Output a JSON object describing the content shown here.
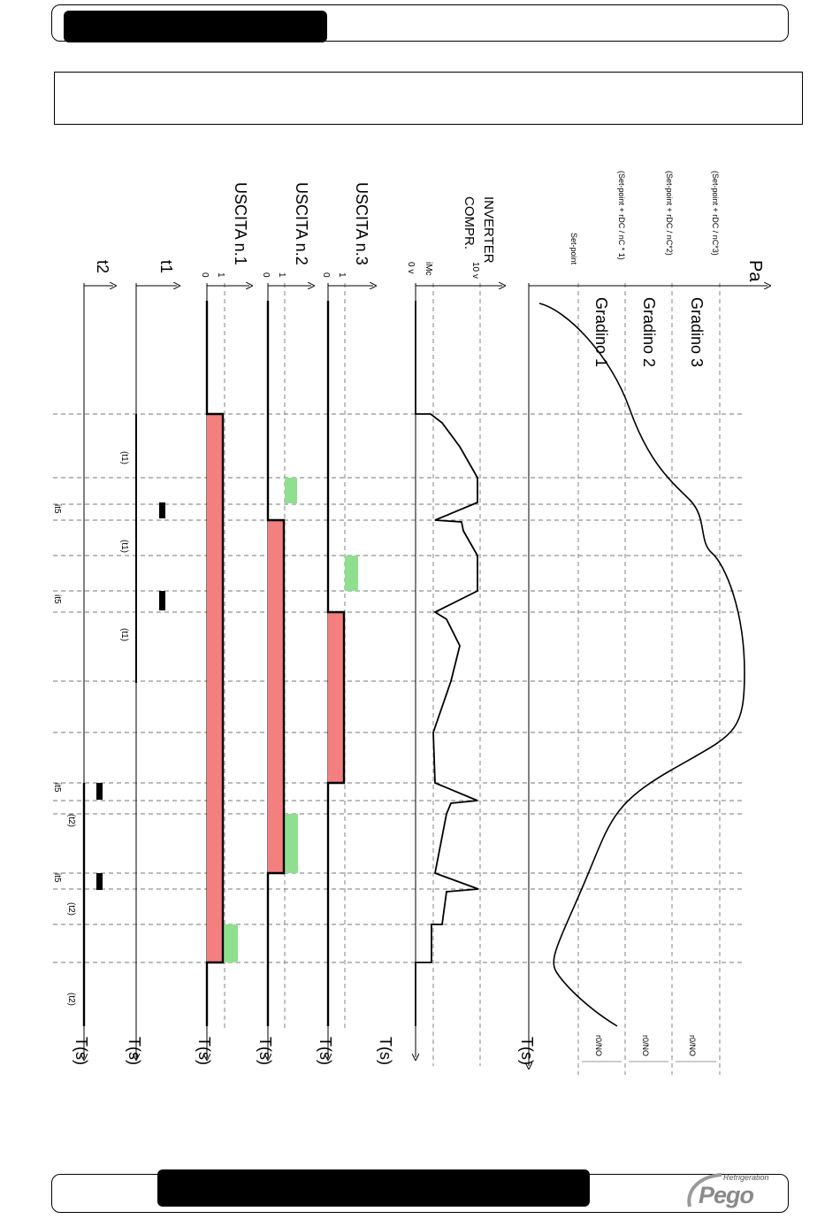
{
  "header": {
    "title": ""
  },
  "title_box": {
    "text": ""
  },
  "footer": {
    "text": ""
  },
  "logo": {
    "sub": "Refrigeration",
    "word": "Pego"
  },
  "diagram": {
    "pressure_axis": "Pa",
    "time_label": "T(s)",
    "levels": {
      "setpoint": "Set-point",
      "sp1": "(Set-point + rDC / nC * 1)",
      "sp2": "(Set-point + rDC / nC*2)",
      "sp3": "(Set-point + rDC / nC*3)"
    },
    "steps": [
      "Gradino 1",
      "Gradino 2",
      "Gradino 3"
    ],
    "hyst": "r0/NO",
    "inverter": {
      "line1": "INVERTER",
      "line2": "COMPR.",
      "v10": "10 v",
      "vmin": "iMc",
      "v0": "0 v"
    },
    "outputs": [
      "USCITA n.1",
      "USCITA n.2",
      "USCITA n.3"
    ],
    "one": "1",
    "zero": "0",
    "t1": "t1",
    "t2": "t2",
    "t1p": "(t1)",
    "t2p": "(t2)",
    "its": "it5",
    "colors": {
      "on_fill": "#f47f7f",
      "delay_fill": "#8ee08e"
    }
  }
}
